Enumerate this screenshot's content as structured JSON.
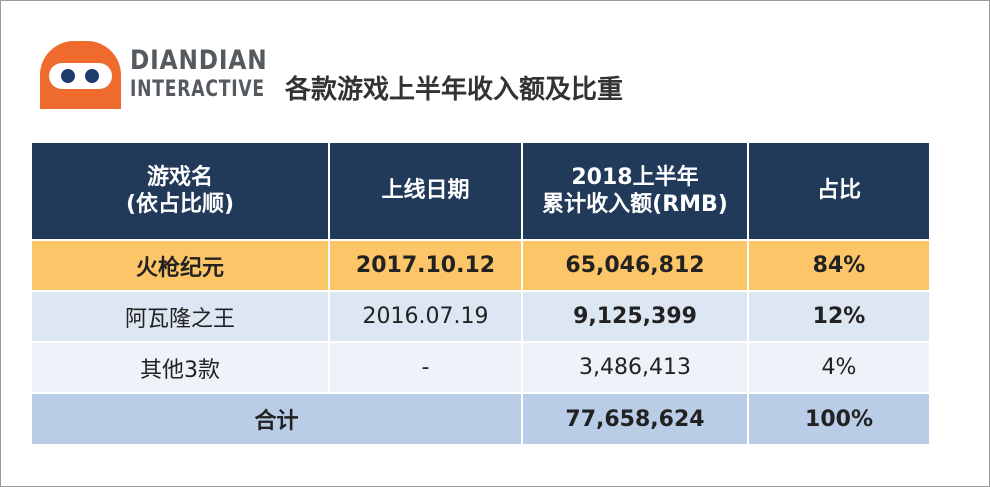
{
  "logo": {
    "line1": "DIANDIAN",
    "line2": "INTERACTIVE",
    "colors": {
      "mark": "#ef6a2d",
      "eye": "#1f3c6e",
      "text": "#555a5f"
    }
  },
  "title": "各款游戏上半年收入额及比重",
  "table": {
    "headers": [
      "游戏名\n(依占比顺)",
      "上线日期",
      "2018上半年\n累计收入额(RMB)",
      "占比"
    ],
    "rows": [
      {
        "name": "火枪纪元",
        "date": "2017.10.12",
        "revenue": "65,046,812",
        "share": "84%"
      },
      {
        "name": "阿瓦隆之王",
        "date": "2016.07.19",
        "revenue": "9,125,399",
        "share": "12%"
      },
      {
        "name": "其他3款",
        "date": "-",
        "revenue": "3,486,413",
        "share": "4%"
      }
    ],
    "total": {
      "label": "合计",
      "revenue": "77,658,624",
      "share": "100%"
    },
    "colors": {
      "header_bg": "#223a5a",
      "highlight_row": "#fcc567",
      "row_alt_1": "#dde6f3",
      "row_alt_2": "#eef2f9",
      "total_row": "#b9cde7"
    }
  }
}
